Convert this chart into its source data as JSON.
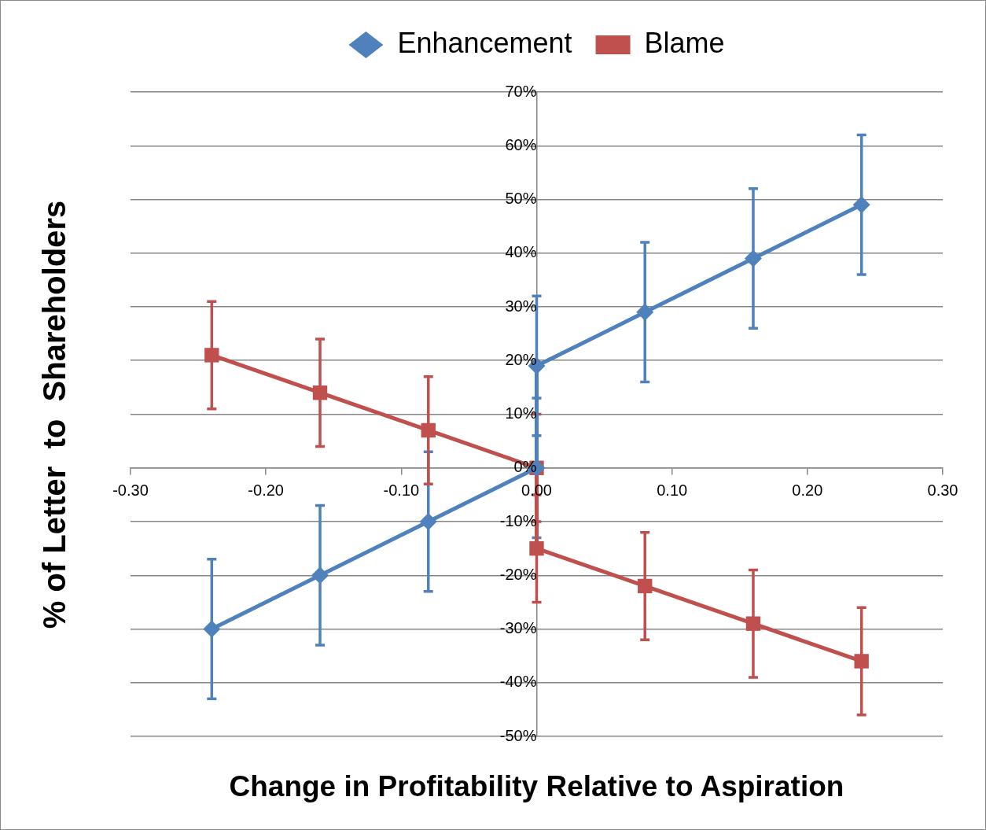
{
  "chart_data": {
    "type": "line",
    "xlabel": "Change in Profitability Relative to Aspiration",
    "ylabel": "% of Letter  to  Shareholders",
    "x": [
      -0.24,
      -0.16,
      -0.08,
      0,
      0,
      0.08,
      0.16,
      0.24
    ],
    "series": [
      {
        "name": "Enhancement",
        "color": "#4f81bd",
        "marker": "diamond",
        "values": [
          -30,
          -20,
          -10,
          0,
          19,
          29,
          39,
          49
        ],
        "errors": [
          13,
          13,
          13,
          13,
          13,
          13,
          13,
          13
        ]
      },
      {
        "name": "Blame",
        "color": "#c0504d",
        "marker": "square",
        "values": [
          21,
          14,
          7,
          0,
          -15,
          -22,
          -29,
          -36
        ],
        "errors": [
          10,
          10,
          10,
          10,
          10,
          10,
          10,
          10
        ]
      }
    ],
    "xlim": [
      -0.3,
      0.3
    ],
    "xticks": [
      {
        "value": -0.3,
        "label": "-0.30"
      },
      {
        "value": -0.2,
        "label": "-0.20"
      },
      {
        "value": -0.1,
        "label": "-0.10"
      },
      {
        "value": 0,
        "label": "0.00"
      },
      {
        "value": 0.1,
        "label": "0.10"
      },
      {
        "value": 0.2,
        "label": "0.20"
      },
      {
        "value": 0.3,
        "label": "0.30"
      }
    ],
    "ylim": [
      -50,
      70
    ],
    "yticks": [
      {
        "value": -50,
        "label": "-50%"
      },
      {
        "value": -40,
        "label": "-40%"
      },
      {
        "value": -30,
        "label": "-30%"
      },
      {
        "value": -20,
        "label": "-20%"
      },
      {
        "value": -10,
        "label": "-10%"
      },
      {
        "value": 0,
        "label": "0%"
      },
      {
        "value": 10,
        "label": "10%"
      },
      {
        "value": 20,
        "label": "20%"
      },
      {
        "value": 30,
        "label": "30%"
      },
      {
        "value": 40,
        "label": "40%"
      },
      {
        "value": 50,
        "label": "50%"
      },
      {
        "value": 60,
        "label": "60%"
      },
      {
        "value": 70,
        "label": "70%"
      }
    ],
    "grid": "y",
    "legend": "top"
  }
}
